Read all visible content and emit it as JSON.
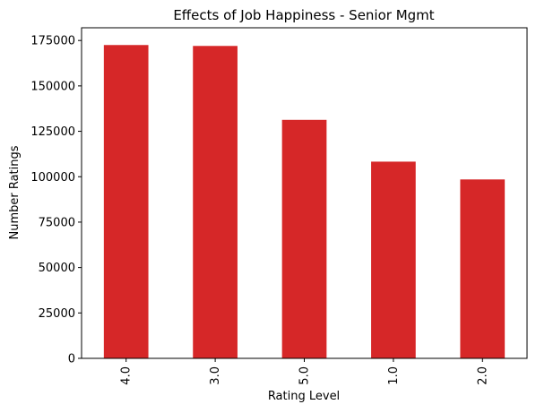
{
  "chart_data": {
    "type": "bar",
    "title": "Effects of Job Happiness - Senior Mgmt",
    "xlabel": "Rating Level",
    "ylabel": "Number Ratings",
    "categories": [
      "4.0",
      "3.0",
      "5.0",
      "1.0",
      "2.0"
    ],
    "values": [
      172500,
      172000,
      131300,
      108300,
      98500
    ],
    "ylim": [
      0,
      182000
    ],
    "yticks": [
      "0",
      "25000",
      "50000",
      "75000",
      "100000",
      "125000",
      "150000",
      "175000"
    ],
    "ytick_values": [
      0,
      25000,
      50000,
      75000,
      100000,
      125000,
      150000,
      175000
    ],
    "bar_color": "#d62728",
    "grid": false,
    "legend": "none"
  }
}
